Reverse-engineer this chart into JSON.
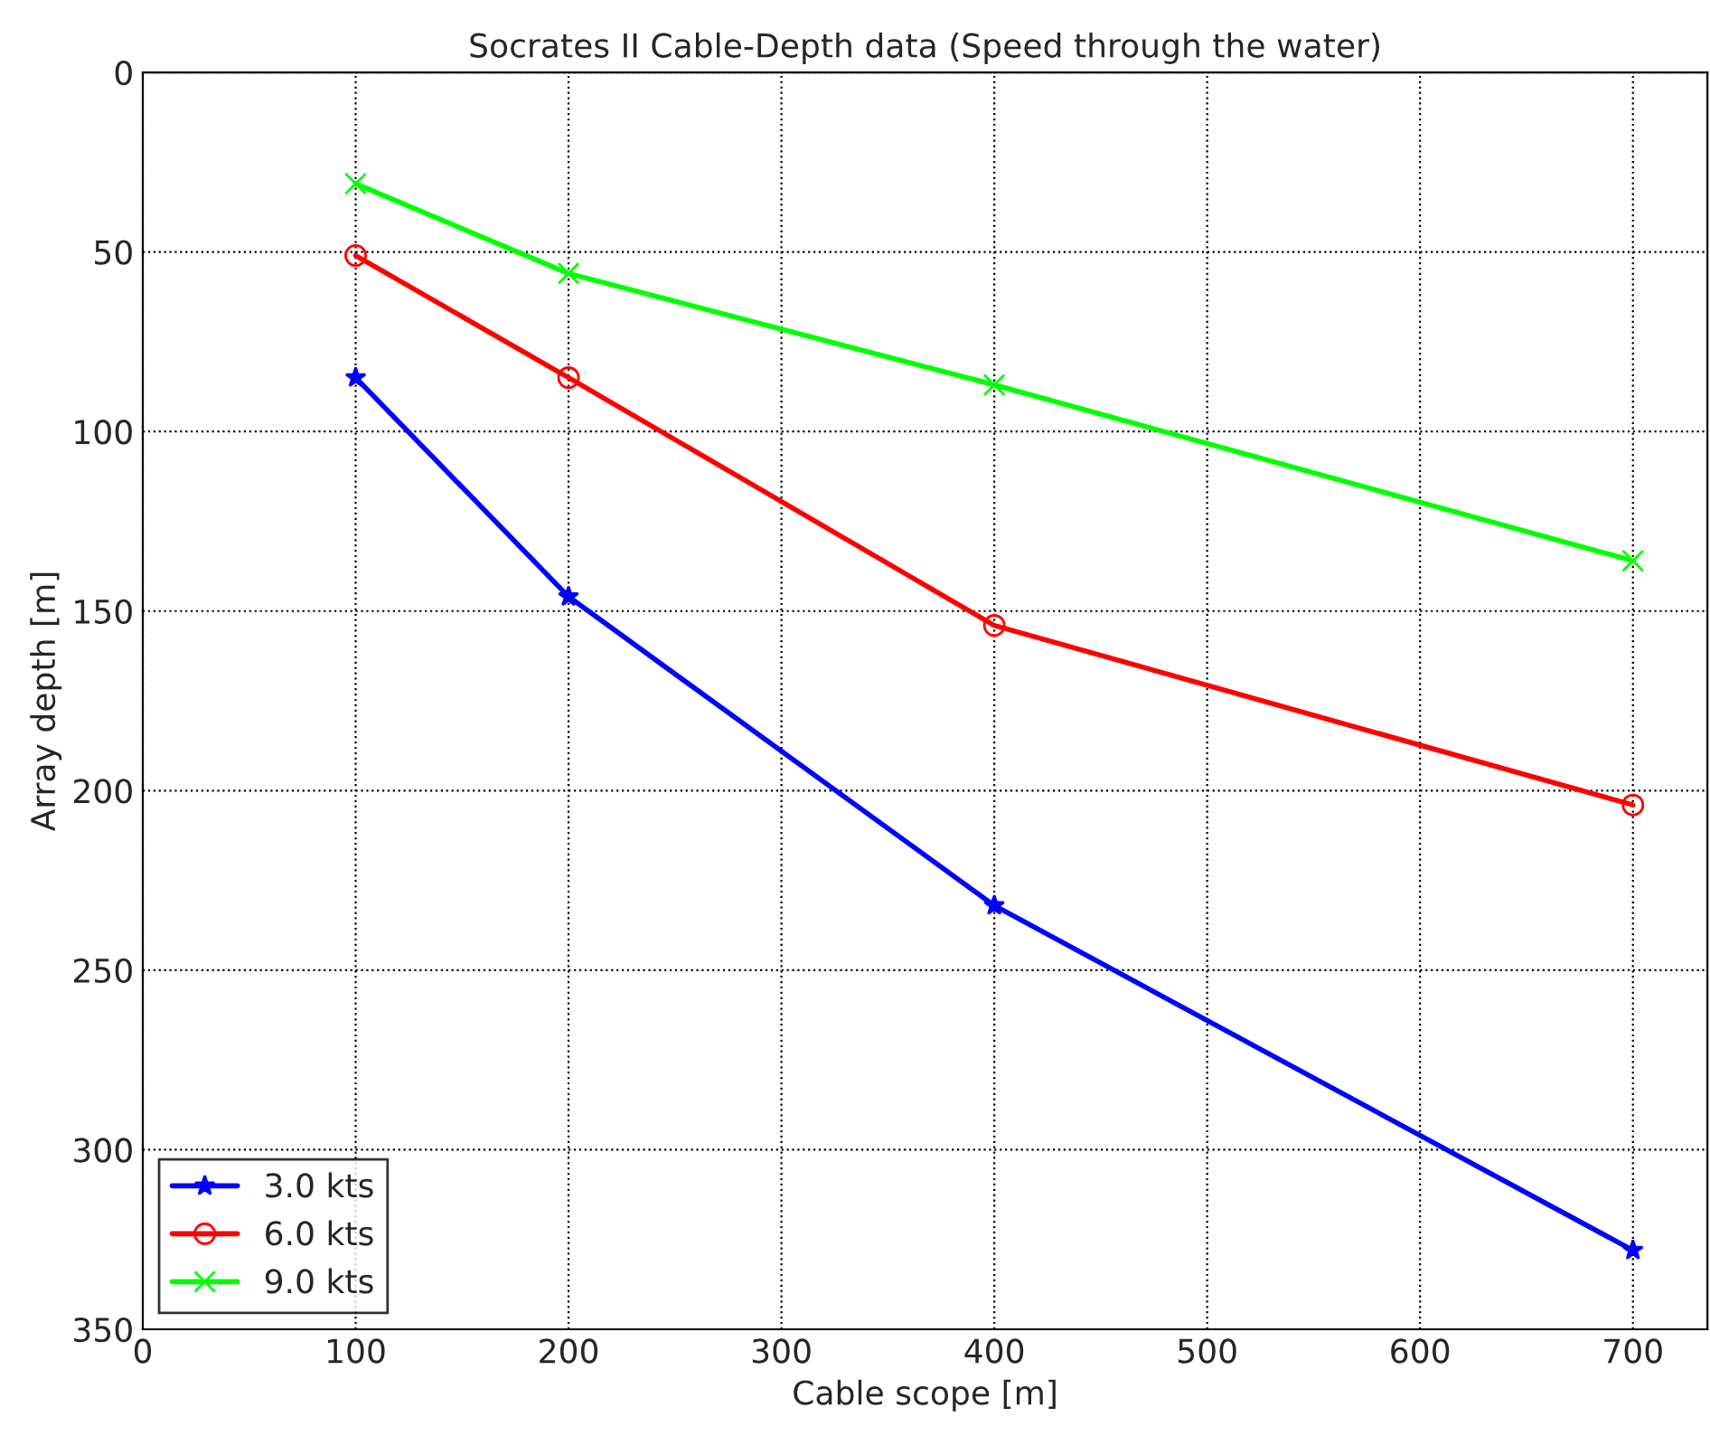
{
  "chart_data": {
    "type": "line",
    "title": "Socrates II Cable-Depth data (Speed through the water)",
    "xlabel": "Cable scope [m]",
    "ylabel": "Array depth [m]",
    "x": [
      100,
      200,
      400,
      700
    ],
    "series": [
      {
        "name": "3.0 kts",
        "color": "#0000ff",
        "marker": "star",
        "values": [
          85,
          146,
          232,
          328
        ]
      },
      {
        "name": "6.0 kts",
        "color": "#ff0000",
        "marker": "circle",
        "values": [
          51,
          85,
          154,
          204
        ]
      },
      {
        "name": "9.0 kts",
        "color": "#00ff00",
        "marker": "cross",
        "values": [
          31,
          56,
          87,
          136
        ]
      }
    ],
    "xlim": [
      0,
      735
    ],
    "xticks": [
      0,
      100,
      200,
      300,
      400,
      500,
      600,
      700
    ],
    "ylim": [
      350,
      0
    ],
    "yticks": [
      0,
      50,
      100,
      150,
      200,
      250,
      300,
      350
    ],
    "grid": true,
    "legend": "bottom left",
    "line_style": "solid"
  }
}
